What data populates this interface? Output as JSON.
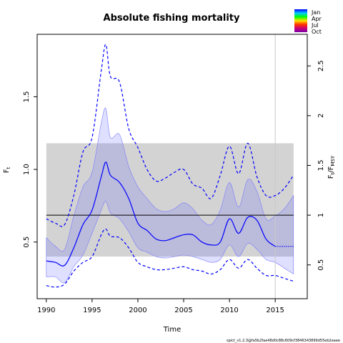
{
  "chart_data": {
    "type": "line",
    "title": "Absolute fishing mortality",
    "xlabel": "Time",
    "ylabel": "F",
    "ylabel_sub": "t",
    "y2label": "F",
    "y2label_sub": "t",
    "y2label_tail": "/F",
    "y2label_tail_sub": "MSY",
    "xlim": [
      1989.0,
      2018.5
    ],
    "ylim": [
      0.11,
      1.93
    ],
    "x_ticks": [
      1990,
      1995,
      2000,
      2005,
      2010,
      2015
    ],
    "y_ticks": [
      0.5,
      1.0,
      1.5
    ],
    "y_tick_labels": [
      "0.5",
      "1.0",
      "1.5"
    ],
    "fmsy": 0.685,
    "y2_ticks": [
      0.5,
      1.0,
      1.5,
      2.0,
      2.5
    ],
    "y2_tick_labels": [
      "0.5",
      "1",
      "1.5",
      "2",
      "2.5"
    ],
    "fmsy_band": [
      0.4,
      1.18
    ],
    "band_x": [
      1990,
      2017
    ],
    "vertical_line_x": 2015,
    "grid": false,
    "legend": {
      "position": "top-right",
      "labels": [
        "Jan",
        "Apr",
        "Jul",
        "Oct"
      ],
      "colors": [
        "#0000ff",
        "#00c8ff",
        "#00ff00",
        "#ffe000",
        "#ff3300",
        "#cc0077",
        "#7700aa"
      ]
    },
    "series": [
      {
        "role": "estimate",
        "color": "#0000ff",
        "style": "solid",
        "x": [
          1990,
          1991,
          1992,
          1993,
          1994,
          1995,
          1996,
          1996.5,
          1997,
          1998,
          1999,
          2000,
          2001,
          2002,
          2003,
          2004,
          2005,
          2006,
          2007,
          2008,
          2009,
          2010,
          2011,
          2012,
          2013,
          2014,
          2015
        ],
        "values": [
          0.37,
          0.36,
          0.34,
          0.46,
          0.62,
          0.72,
          0.95,
          1.05,
          0.96,
          0.91,
          0.8,
          0.63,
          0.58,
          0.52,
          0.51,
          0.53,
          0.55,
          0.55,
          0.5,
          0.48,
          0.5,
          0.66,
          0.56,
          0.67,
          0.65,
          0.52,
          0.47
        ]
      },
      {
        "role": "projection",
        "color": "#0000ff",
        "style": "dotted",
        "x": [
          2015,
          2016,
          2017
        ],
        "values": [
          0.47,
          0.47,
          0.47
        ]
      },
      {
        "role": "upper-ci",
        "color": "#0000ff",
        "style": "dashed",
        "x": [
          1990,
          1991,
          1992,
          1993,
          1994,
          1995,
          1996,
          1996.5,
          1997,
          1998,
          1999,
          2000,
          2001,
          2002,
          2003,
          2004,
          2005,
          2006,
          2007,
          2008,
          2009,
          2010,
          2011,
          2012,
          2013,
          2014,
          2015,
          2016,
          2017
        ],
        "values": [
          0.66,
          0.63,
          0.62,
          0.82,
          1.12,
          1.22,
          1.68,
          1.86,
          1.64,
          1.6,
          1.28,
          1.15,
          1.0,
          0.92,
          0.94,
          0.98,
          1.0,
          0.9,
          0.87,
          0.8,
          0.96,
          1.16,
          0.97,
          1.18,
          0.95,
          0.82,
          0.82,
          0.87,
          0.96
        ]
      },
      {
        "role": "lower-ci",
        "color": "#0000ff",
        "style": "dashed",
        "x": [
          1990,
          1991,
          1992,
          1993,
          1994,
          1995,
          1996,
          1996.5,
          1997,
          1998,
          1999,
          2000,
          2001,
          2002,
          2003,
          2004,
          2005,
          2006,
          2007,
          2008,
          2009,
          2010,
          2011,
          2012,
          2013,
          2014,
          2015,
          2016,
          2017
        ],
        "values": [
          0.2,
          0.19,
          0.21,
          0.3,
          0.36,
          0.4,
          0.55,
          0.59,
          0.54,
          0.53,
          0.46,
          0.36,
          0.33,
          0.31,
          0.31,
          0.32,
          0.33,
          0.31,
          0.3,
          0.28,
          0.31,
          0.38,
          0.32,
          0.38,
          0.32,
          0.27,
          0.27,
          0.25,
          0.23
        ]
      },
      {
        "role": "seasonal-envelope",
        "fill": "rgba(80,80,255,0.18)",
        "x": [
          1990,
          1991,
          1992,
          1993,
          1994,
          1995,
          1996,
          1996.5,
          1997,
          1998,
          1999,
          2000,
          2001,
          2002,
          2003,
          2004,
          2005,
          2006,
          2007,
          2008,
          2009,
          2010,
          2011,
          2012,
          2013,
          2014,
          2015,
          2016,
          2017
        ],
        "upper": [
          0.53,
          0.47,
          0.45,
          0.68,
          0.88,
          0.98,
          1.32,
          1.42,
          1.22,
          1.24,
          1.02,
          0.88,
          0.8,
          0.73,
          0.71,
          0.73,
          0.77,
          0.73,
          0.65,
          0.62,
          0.72,
          0.91,
          0.74,
          0.93,
          0.85,
          0.66,
          0.68,
          0.73,
          0.82
        ],
        "lower": [
          0.26,
          0.26,
          0.22,
          0.33,
          0.41,
          0.56,
          0.72,
          0.78,
          0.7,
          0.66,
          0.57,
          0.46,
          0.43,
          0.4,
          0.39,
          0.4,
          0.41,
          0.4,
          0.38,
          0.36,
          0.38,
          0.48,
          0.4,
          0.49,
          0.45,
          0.38,
          0.36,
          0.32,
          0.28
        ]
      }
    ],
    "footer": "spict_v1.2.3@fa5b2fae48d0c88c609cf3846343899d55eb2eaee"
  }
}
